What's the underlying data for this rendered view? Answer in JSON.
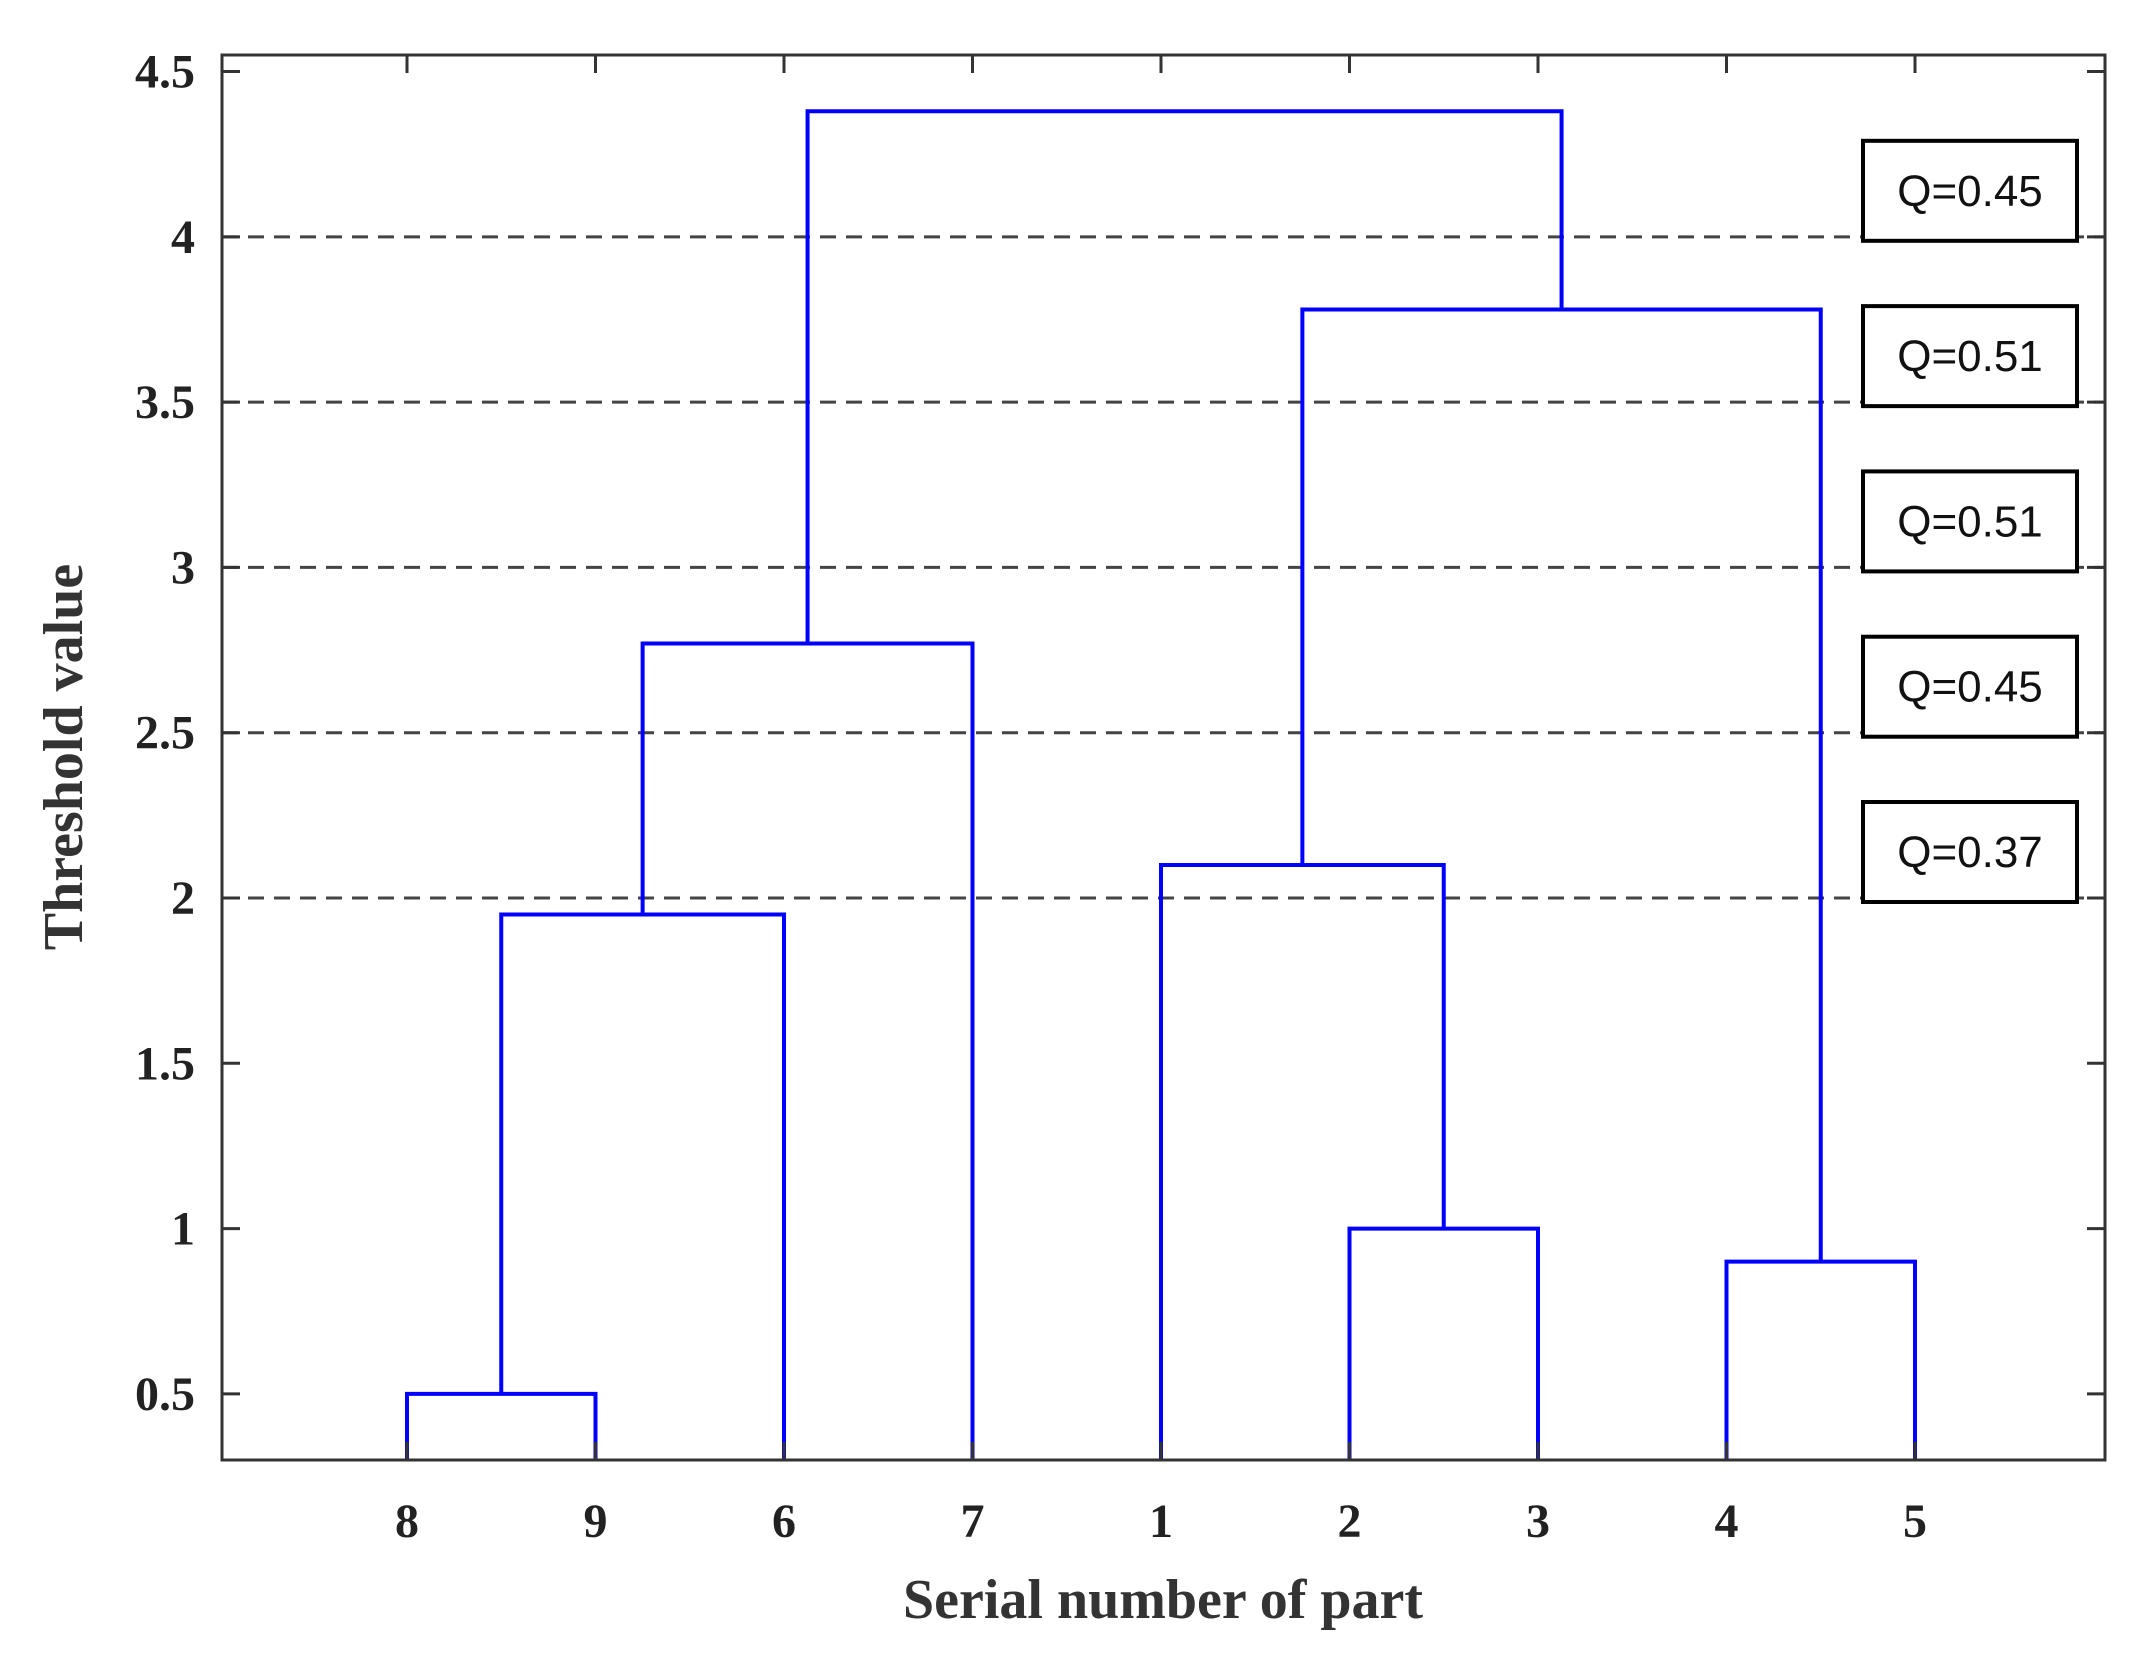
{
  "chart_data": {
    "type": "dendrogram",
    "xlabel": "Serial number of part",
    "ylabel": "Threshold value",
    "leaf_order": [
      "8",
      "9",
      "6",
      "7",
      "1",
      "2",
      "3",
      "4",
      "5"
    ],
    "ylim": [
      0.3,
      4.55
    ],
    "yticks": [
      0.5,
      1,
      1.5,
      2,
      2.5,
      3,
      3.5,
      4,
      4.5
    ],
    "ytick_labels": [
      "0.5",
      "1",
      "1.5",
      "2",
      "2.5",
      "3",
      "3.5",
      "4",
      "4.5"
    ],
    "merges": [
      {
        "left": "8",
        "right": "9",
        "height": 0.5
      },
      {
        "left": "4",
        "right": "5",
        "height": 0.9
      },
      {
        "left": "2",
        "right": "3",
        "height": 1.0
      },
      {
        "left": "8+9",
        "right": "6",
        "height": 1.95
      },
      {
        "left": "1",
        "right": "2+3",
        "height": 2.1
      },
      {
        "left": "8+9+6",
        "right": "7",
        "height": 2.77
      },
      {
        "left": "1+2+3",
        "right": "4+5",
        "height": 3.78
      },
      {
        "left": "8+9+6+7",
        "right": "1+2+3+4+5",
        "height": 4.38
      }
    ],
    "thresholds": [
      {
        "value": 4.0,
        "label": "Q=0.45"
      },
      {
        "value": 3.5,
        "label": "Q=0.51"
      },
      {
        "value": 3.0,
        "label": "Q=0.51"
      },
      {
        "value": 2.5,
        "label": "Q=0.45"
      },
      {
        "value": 2.0,
        "label": "Q=0.37"
      }
    ],
    "colors": {
      "dendrogram": "#0000ff",
      "threshold_line": "#444444",
      "axis": "#333333"
    },
    "grid": false,
    "legend": "none"
  }
}
